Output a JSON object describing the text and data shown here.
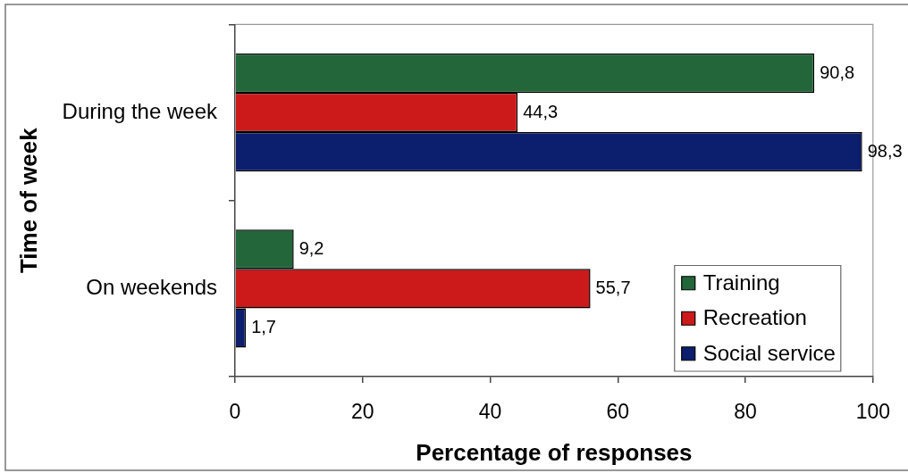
{
  "chart_data": {
    "type": "bar",
    "orientation": "horizontal",
    "xlabel": "Percentage of responses",
    "ylabel": "Time of week",
    "categories": [
      "During the week",
      "On weekends"
    ],
    "series": [
      {
        "name": "Training",
        "color": "#22663a",
        "values": [
          90.8,
          9.2
        ],
        "value_labels": [
          "90,8",
          "9,2"
        ]
      },
      {
        "name": "Recreation",
        "color": "#cc1a1a",
        "values": [
          44.3,
          55.7
        ],
        "value_labels": [
          "44,3",
          "55,7"
        ]
      },
      {
        "name": "Social service",
        "color": "#0c1e6e",
        "values": [
          98.3,
          1.7
        ],
        "value_labels": [
          "98,3",
          "1,7"
        ]
      }
    ],
    "xlim": [
      0,
      100
    ],
    "xticks": [
      0,
      20,
      40,
      60,
      80,
      100
    ],
    "grid": false,
    "legend": "bottom right"
  }
}
